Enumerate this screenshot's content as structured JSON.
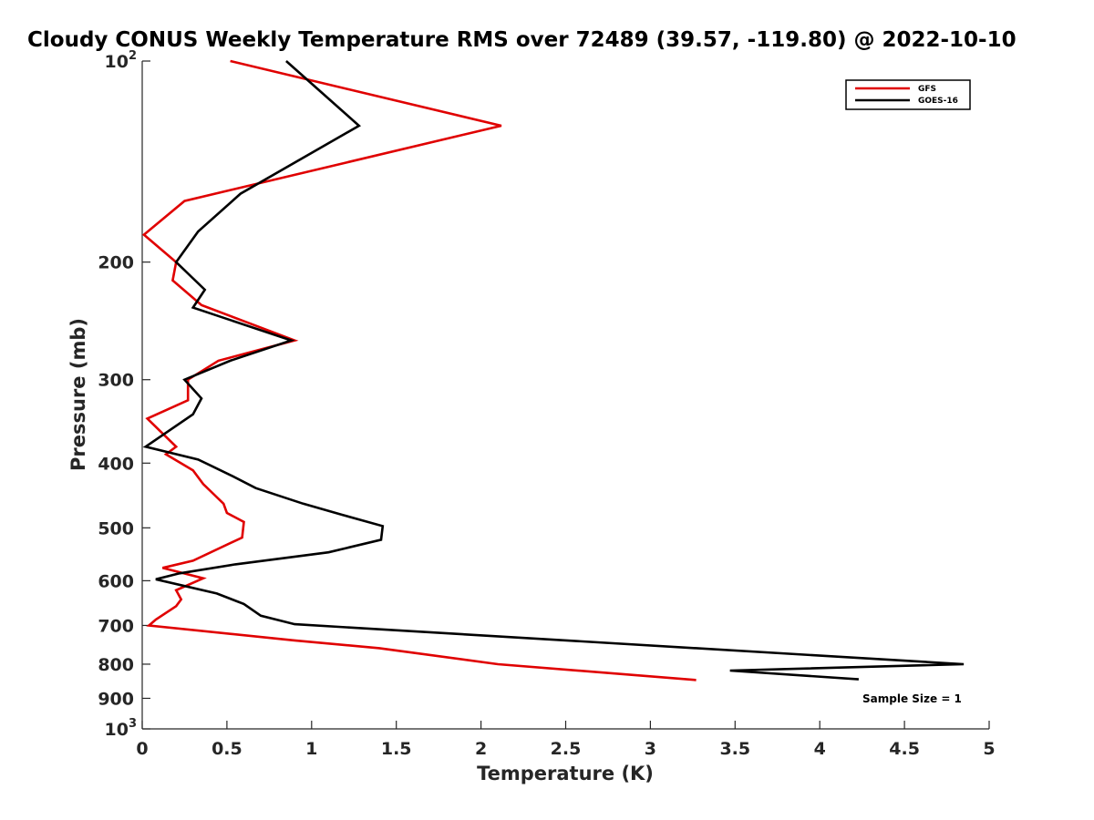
{
  "chart_data": {
    "type": "line",
    "title": "Cloudy CONUS Weekly Temperature RMS over 72489 (39.57, -119.80) @ 2022-10-10",
    "xlabel": "Temperature (K)",
    "ylabel": "Pressure (mb)",
    "xlim": [
      0,
      5
    ],
    "ylim": [
      100,
      1000
    ],
    "y_scale": "log",
    "y_reversed": true,
    "x_ticks": [
      "0",
      "0.5",
      "1",
      "1.5",
      "2",
      "2.5",
      "3",
      "3.5",
      "4",
      "4.5",
      "5"
    ],
    "y_ticks": [
      {
        "value": 100,
        "label": "10",
        "sup": "2"
      },
      {
        "value": 200,
        "label": "200",
        "sup": ""
      },
      {
        "value": 300,
        "label": "300",
        "sup": ""
      },
      {
        "value": 400,
        "label": "400",
        "sup": ""
      },
      {
        "value": 500,
        "label": "500",
        "sup": ""
      },
      {
        "value": 600,
        "label": "600",
        "sup": ""
      },
      {
        "value": 700,
        "label": "700",
        "sup": ""
      },
      {
        "value": 800,
        "label": "800",
        "sup": ""
      },
      {
        "value": 900,
        "label": "900",
        "sup": ""
      },
      {
        "value": 1000,
        "label": "10",
        "sup": "3"
      }
    ],
    "grid": false,
    "legend_position": "top-right",
    "annotation": "Sample Size = 1",
    "series": [
      {
        "name": "GFS",
        "color": "#e00000",
        "points": [
          [
            0.52,
            100
          ],
          [
            2.12,
            125
          ],
          [
            0.25,
            162
          ],
          [
            0.01,
            182
          ],
          [
            0.2,
            200
          ],
          [
            0.18,
            213
          ],
          [
            0.35,
            232
          ],
          [
            0.9,
            262
          ],
          [
            0.45,
            281
          ],
          [
            0.27,
            300
          ],
          [
            0.27,
            322
          ],
          [
            0.03,
            343
          ],
          [
            0.2,
            378
          ],
          [
            0.14,
            388
          ],
          [
            0.3,
            410
          ],
          [
            0.36,
            430
          ],
          [
            0.48,
            460
          ],
          [
            0.5,
            475
          ],
          [
            0.6,
            490
          ],
          [
            0.59,
            517
          ],
          [
            0.3,
            560
          ],
          [
            0.12,
            574
          ],
          [
            0.36,
            595
          ],
          [
            0.2,
            620
          ],
          [
            0.23,
            640
          ],
          [
            0.2,
            655
          ],
          [
            0.08,
            686
          ],
          [
            0.04,
            700
          ],
          [
            0.9,
            737
          ],
          [
            1.4,
            757
          ],
          [
            2.1,
            800
          ],
          [
            3.27,
            845
          ]
        ]
      },
      {
        "name": "GOES-16",
        "color": "#000000",
        "points": [
          [
            0.85,
            100
          ],
          [
            1.28,
            125
          ],
          [
            0.58,
            158
          ],
          [
            0.33,
            180
          ],
          [
            0.2,
            200
          ],
          [
            0.37,
            220
          ],
          [
            0.3,
            234
          ],
          [
            0.88,
            262
          ],
          [
            0.52,
            281
          ],
          [
            0.25,
            300
          ],
          [
            0.35,
            320
          ],
          [
            0.3,
            338
          ],
          [
            0.02,
            378
          ],
          [
            0.33,
            395
          ],
          [
            0.53,
            418
          ],
          [
            0.67,
            436
          ],
          [
            0.95,
            460
          ],
          [
            1.18,
            478
          ],
          [
            1.42,
            497
          ],
          [
            1.41,
            521
          ],
          [
            1.1,
            544
          ],
          [
            0.55,
            567
          ],
          [
            0.22,
            585
          ],
          [
            0.08,
            597
          ],
          [
            0.44,
            627
          ],
          [
            0.6,
            650
          ],
          [
            0.7,
            677
          ],
          [
            0.9,
            697
          ],
          [
            4.85,
            800
          ],
          [
            3.47,
            818
          ],
          [
            4.23,
            843
          ]
        ]
      }
    ]
  }
}
